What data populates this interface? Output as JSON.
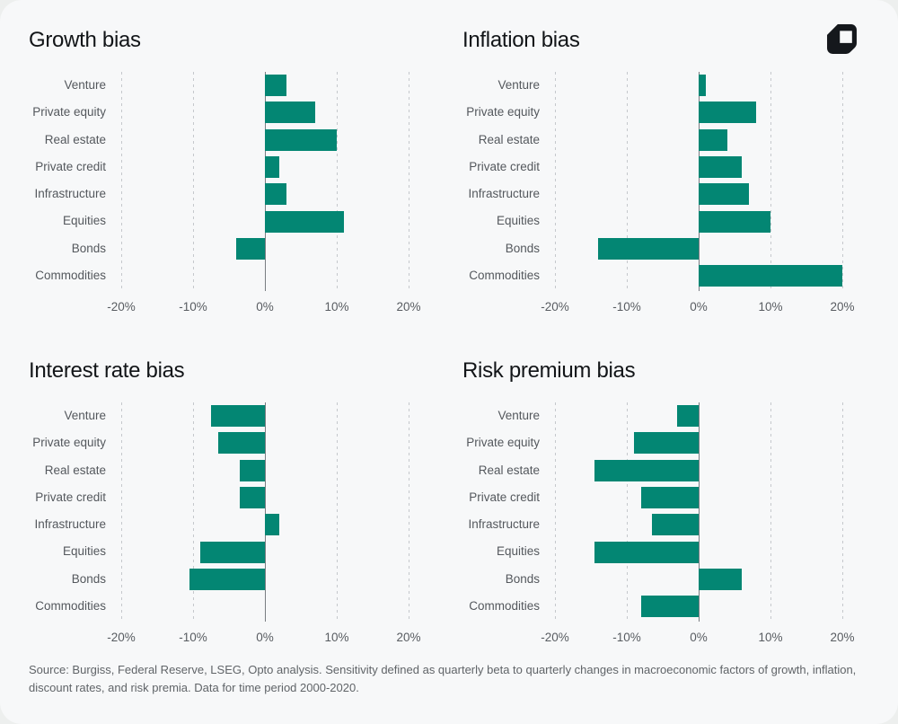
{
  "page": {
    "card_background": "#f7f8f9",
    "outer_background": "#edefee"
  },
  "logo": {
    "name": "opto-logo",
    "color": "#15181c"
  },
  "colors": {
    "bar": "#038673",
    "gridline": "#c5c8cc",
    "zero_line": "#797d82",
    "category_label": "#54585d",
    "tick_label": "#585c61",
    "title": "#121518",
    "footer": "#606468"
  },
  "footer": {
    "text": "Source: Burgiss, Federal Reserve, LSEG, Opto analysis. Sensitivity defined as quarterly beta to quarterly changes in macroeconomic factors of growth, inflation, discount rates, and risk premia. Data for time period 2000-2020."
  },
  "chart_data": [
    {
      "type": "bar",
      "orientation": "horizontal",
      "title": "Growth bias",
      "categories": [
        "Venture",
        "Private equity",
        "Real estate",
        "Private credit",
        "Infrastructure",
        "Equities",
        "Bonds",
        "Commodities"
      ],
      "values": [
        3,
        7,
        10,
        2,
        3,
        11,
        -4,
        0
      ],
      "unit": "%",
      "xlim": [
        -20,
        20
      ],
      "grid": "dashed-vertical",
      "xticks": [
        {
          "value": -20,
          "label": "-20%"
        },
        {
          "value": -10,
          "label": "-10%"
        },
        {
          "value": 0,
          "label": "0%"
        },
        {
          "value": 10,
          "label": "10%"
        },
        {
          "value": 20,
          "label": "20%"
        }
      ]
    },
    {
      "type": "bar",
      "orientation": "horizontal",
      "title": "Inflation bias",
      "categories": [
        "Venture",
        "Private equity",
        "Real estate",
        "Private credit",
        "Infrastructure",
        "Equities",
        "Bonds",
        "Commodities"
      ],
      "values": [
        1,
        8,
        4,
        6,
        7,
        10,
        -14,
        20
      ],
      "unit": "%",
      "xlim": [
        -20,
        20
      ],
      "grid": "dashed-vertical",
      "xticks": [
        {
          "value": -20,
          "label": "-20%"
        },
        {
          "value": -10,
          "label": "-10%"
        },
        {
          "value": 0,
          "label": "0%"
        },
        {
          "value": 10,
          "label": "10%"
        },
        {
          "value": 20,
          "label": "20%"
        }
      ]
    },
    {
      "type": "bar",
      "orientation": "horizontal",
      "title": "Interest rate bias",
      "categories": [
        "Venture",
        "Private equity",
        "Real estate",
        "Private credit",
        "Infrastructure",
        "Equities",
        "Bonds",
        "Commodities"
      ],
      "values": [
        -7.5,
        -6.5,
        -3.5,
        -3.5,
        2,
        -9,
        -10.5,
        0
      ],
      "unit": "%",
      "xlim": [
        -20,
        20
      ],
      "grid": "dashed-vertical",
      "xticks": [
        {
          "value": -20,
          "label": "-20%"
        },
        {
          "value": -10,
          "label": "-10%"
        },
        {
          "value": 0,
          "label": "0%"
        },
        {
          "value": 10,
          "label": "10%"
        },
        {
          "value": 20,
          "label": "20%"
        }
      ]
    },
    {
      "type": "bar",
      "orientation": "horizontal",
      "title": "Risk premium bias",
      "categories": [
        "Venture",
        "Private equity",
        "Real estate",
        "Private credit",
        "Infrastructure",
        "Equities",
        "Bonds",
        "Commodities"
      ],
      "values": [
        -3,
        -9,
        -14.5,
        -8,
        -6.5,
        -14.5,
        6,
        -8
      ],
      "unit": "%",
      "xlim": [
        -20,
        20
      ],
      "grid": "dashed-vertical",
      "xticks": [
        {
          "value": -20,
          "label": "-20%"
        },
        {
          "value": -10,
          "label": "-10%"
        },
        {
          "value": 0,
          "label": "0%"
        },
        {
          "value": 10,
          "label": "10%"
        },
        {
          "value": 20,
          "label": "20%"
        }
      ]
    }
  ]
}
